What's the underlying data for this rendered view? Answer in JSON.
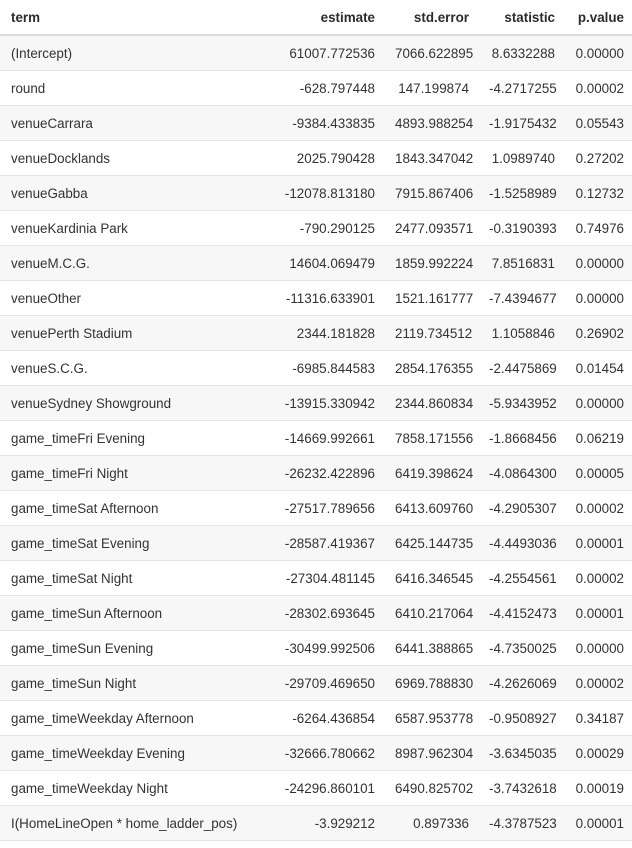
{
  "table": {
    "headers": [
      "term",
      "estimate",
      "std.error",
      "statistic",
      "p.value"
    ],
    "rows": [
      [
        "(Intercept)",
        "61007.772536",
        "7066.622895",
        "8.6332288",
        "0.00000"
      ],
      [
        "round",
        "-628.797448",
        "147.199874",
        "-4.2717255",
        "0.00002"
      ],
      [
        "venueCarrara",
        "-9384.433835",
        "4893.988254",
        "-1.9175432",
        "0.05543"
      ],
      [
        "venueDocklands",
        "2025.790428",
        "1843.347042",
        "1.0989740",
        "0.27202"
      ],
      [
        "venueGabba",
        "-12078.813180",
        "7915.867406",
        "-1.5258989",
        "0.12732"
      ],
      [
        "venueKardinia Park",
        "-790.290125",
        "2477.093571",
        "-0.3190393",
        "0.74976"
      ],
      [
        "venueM.C.G.",
        "14604.069479",
        "1859.992224",
        "7.8516831",
        "0.00000"
      ],
      [
        "venueOther",
        "-11316.633901",
        "1521.161777",
        "-7.4394677",
        "0.00000"
      ],
      [
        "venuePerth Stadium",
        "2344.181828",
        "2119.734512",
        "1.1058846",
        "0.26902"
      ],
      [
        "venueS.C.G.",
        "-6985.844583",
        "2854.176355",
        "-2.4475869",
        "0.01454"
      ],
      [
        "venueSydney Showground",
        "-13915.330942",
        "2344.860834",
        "-5.9343952",
        "0.00000"
      ],
      [
        "game_timeFri Evening",
        "-14669.992661",
        "7858.171556",
        "-1.8668456",
        "0.06219"
      ],
      [
        "game_timeFri Night",
        "-26232.422896",
        "6419.398624",
        "-4.0864300",
        "0.00005"
      ],
      [
        "game_timeSat Afternoon",
        "-27517.789656",
        "6413.609760",
        "-4.2905307",
        "0.00002"
      ],
      [
        "game_timeSat Evening",
        "-28587.419367",
        "6425.144735",
        "-4.4493036",
        "0.00001"
      ],
      [
        "game_timeSat Night",
        "-27304.481145",
        "6416.346545",
        "-4.2554561",
        "0.00002"
      ],
      [
        "game_timeSun Afternoon",
        "-28302.693645",
        "6410.217064",
        "-4.4152473",
        "0.00001"
      ],
      [
        "game_timeSun Evening",
        "-30499.992506",
        "6441.388865",
        "-4.7350025",
        "0.00000"
      ],
      [
        "game_timeSun Night",
        "-29709.469650",
        "6969.788830",
        "-4.2626069",
        "0.00002"
      ],
      [
        "game_timeWeekday Afternoon",
        "-6264.436854",
        "6587.953778",
        "-0.9508927",
        "0.34187"
      ],
      [
        "game_timeWeekday Evening",
        "-32666.780662",
        "8987.962304",
        "-3.6345035",
        "0.00029"
      ],
      [
        "game_timeWeekday Night",
        "-24296.860101",
        "6490.825702",
        "-3.7432618",
        "0.00019"
      ],
      [
        "I(HomeLineOpen * home_ladder_pos)",
        "-3.929212",
        "0.897336",
        "-4.3787523",
        "0.00001"
      ]
    ]
  }
}
